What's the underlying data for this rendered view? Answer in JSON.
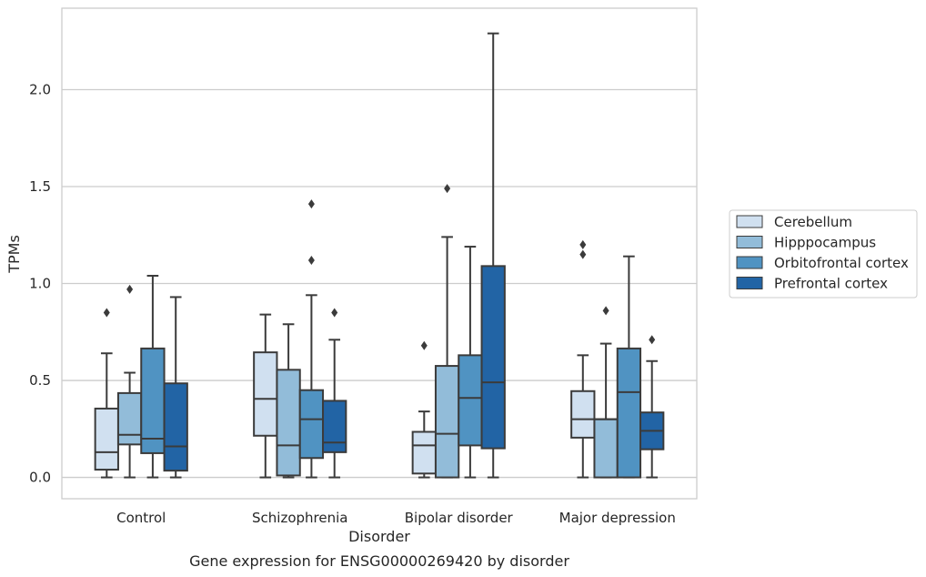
{
  "chart_data": {
    "type": "box",
    "xlabel": "Disorder",
    "ylabel": "TPMs",
    "caption": "Gene expression for ENSG00000269420 by disorder",
    "ylim": [
      -0.11,
      2.42
    ],
    "yticks": [
      "0.0",
      "0.5",
      "1.0",
      "1.5",
      "2.0"
    ],
    "grid": true,
    "legend_position": "right",
    "categories": [
      "Control",
      "Schizophrenia",
      "Bipolar disorder",
      "Major depression"
    ],
    "series": [
      {
        "name": "Cerebellum",
        "color": "#d0e0f0",
        "boxes": [
          {
            "whisker_low": 0.0,
            "q1": 0.04,
            "median": 0.13,
            "q3": 0.355,
            "whisker_high": 0.64,
            "outliers": [
              0.85
            ]
          },
          {
            "whisker_low": 0.0,
            "q1": 0.215,
            "median": 0.405,
            "q3": 0.645,
            "whisker_high": 0.84,
            "outliers": []
          },
          {
            "whisker_low": 0.0,
            "q1": 0.02,
            "median": 0.165,
            "q3": 0.235,
            "whisker_high": 0.34,
            "outliers": [
              0.68
            ]
          },
          {
            "whisker_low": 0.0,
            "q1": 0.205,
            "median": 0.3,
            "q3": 0.445,
            "whisker_high": 0.63,
            "outliers": [
              1.15,
              1.2
            ]
          }
        ]
      },
      {
        "name": "Hipppocampus",
        "color": "#92bcd9",
        "boxes": [
          {
            "whisker_low": 0.0,
            "q1": 0.17,
            "median": 0.22,
            "q3": 0.435,
            "whisker_high": 0.54,
            "outliers": [
              0.97
            ]
          },
          {
            "whisker_low": 0.0,
            "q1": 0.01,
            "median": 0.165,
            "q3": 0.555,
            "whisker_high": 0.79,
            "outliers": []
          },
          {
            "whisker_low": 0.0,
            "q1": 0.0,
            "median": 0.225,
            "q3": 0.575,
            "whisker_high": 1.24,
            "outliers": [
              1.49
            ]
          },
          {
            "whisker_low": 0.0,
            "q1": 0.0,
            "median": 0.3,
            "q3": 0.3,
            "whisker_high": 0.69,
            "outliers": [
              0.86
            ]
          }
        ]
      },
      {
        "name": "Orbitofrontal cortex",
        "color": "#5093c2",
        "boxes": [
          {
            "whisker_low": 0.0,
            "q1": 0.125,
            "median": 0.2,
            "q3": 0.665,
            "whisker_high": 1.04,
            "outliers": []
          },
          {
            "whisker_low": 0.0,
            "q1": 0.1,
            "median": 0.3,
            "q3": 0.45,
            "whisker_high": 0.94,
            "outliers": [
              1.12,
              1.41
            ]
          },
          {
            "whisker_low": 0.0,
            "q1": 0.165,
            "median": 0.41,
            "q3": 0.63,
            "whisker_high": 1.19,
            "outliers": []
          },
          {
            "whisker_low": 0.0,
            "q1": 0.0,
            "median": 0.44,
            "q3": 0.665,
            "whisker_high": 1.14,
            "outliers": []
          }
        ]
      },
      {
        "name": "Prefrontal cortex",
        "color": "#2264a5",
        "boxes": [
          {
            "whisker_low": 0.0,
            "q1": 0.035,
            "median": 0.16,
            "q3": 0.485,
            "whisker_high": 0.93,
            "outliers": []
          },
          {
            "whisker_low": 0.0,
            "q1": 0.13,
            "median": 0.18,
            "q3": 0.395,
            "whisker_high": 0.71,
            "outliers": [
              0.85
            ]
          },
          {
            "whisker_low": 0.0,
            "q1": 0.15,
            "median": 0.49,
            "q3": 1.09,
            "whisker_high": 2.29,
            "outliers": []
          },
          {
            "whisker_low": 0.0,
            "q1": 0.145,
            "median": 0.24,
            "q3": 0.335,
            "whisker_high": 0.6,
            "outliers": [
              0.71
            ]
          }
        ]
      }
    ]
  }
}
